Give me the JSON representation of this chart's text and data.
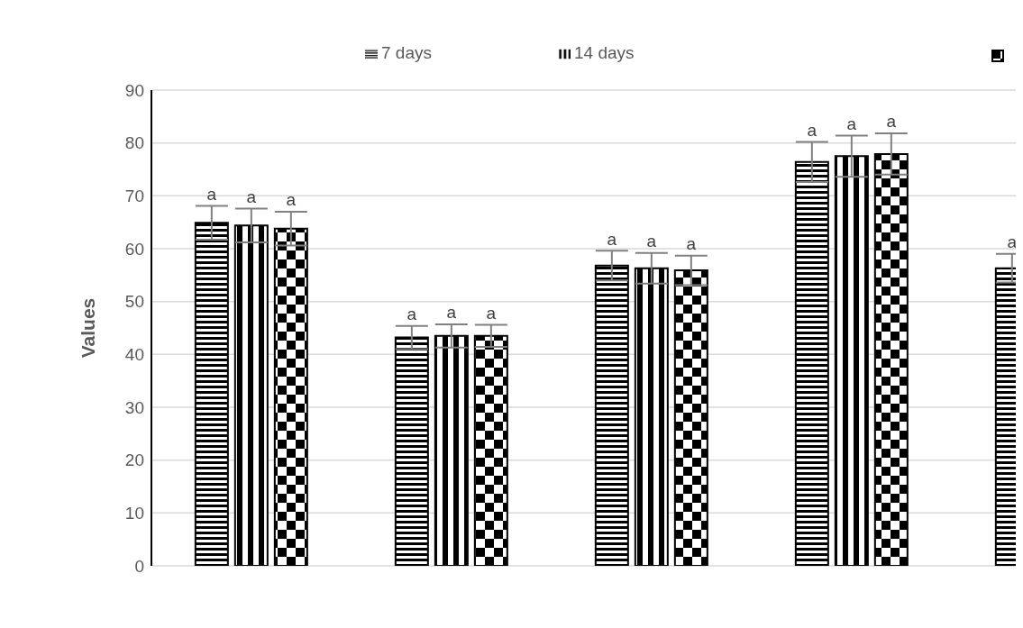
{
  "chart_data": {
    "type": "bar",
    "ylabel": "Values",
    "categories": [
      null,
      null,
      null,
      null,
      null
    ],
    "series": [
      {
        "name": "7 days",
        "color": "#000000",
        "values": [
          64.9,
          43.2,
          56.8,
          76.4,
          56.3
        ],
        "errors": [
          3.2,
          2.2,
          2.8,
          3.8,
          2.7
        ],
        "value_labels": [
          "a",
          "a",
          "a",
          "a",
          "a"
        ]
      },
      {
        "name": "14 days",
        "color": "#000000",
        "values": [
          64.4,
          43.5,
          56.3,
          77.5,
          null
        ],
        "errors": [
          3.2,
          2.2,
          2.9,
          3.9,
          null
        ],
        "value_labels": [
          "a",
          "a",
          "a",
          "a",
          null
        ]
      },
      {
        "color": "#000000",
        "values": [
          63.8,
          43.5,
          55.9,
          77.9,
          null
        ],
        "errors": [
          3.2,
          2.1,
          2.8,
          3.9,
          null
        ],
        "value_labels": [
          "a",
          "a",
          "a",
          "a",
          null
        ]
      }
    ],
    "ylim": [
      0,
      90
    ],
    "yticks": [
      0,
      10,
      20,
      30,
      40,
      50,
      60,
      70,
      80,
      90
    ],
    "grid": "y",
    "legend": "top"
  }
}
